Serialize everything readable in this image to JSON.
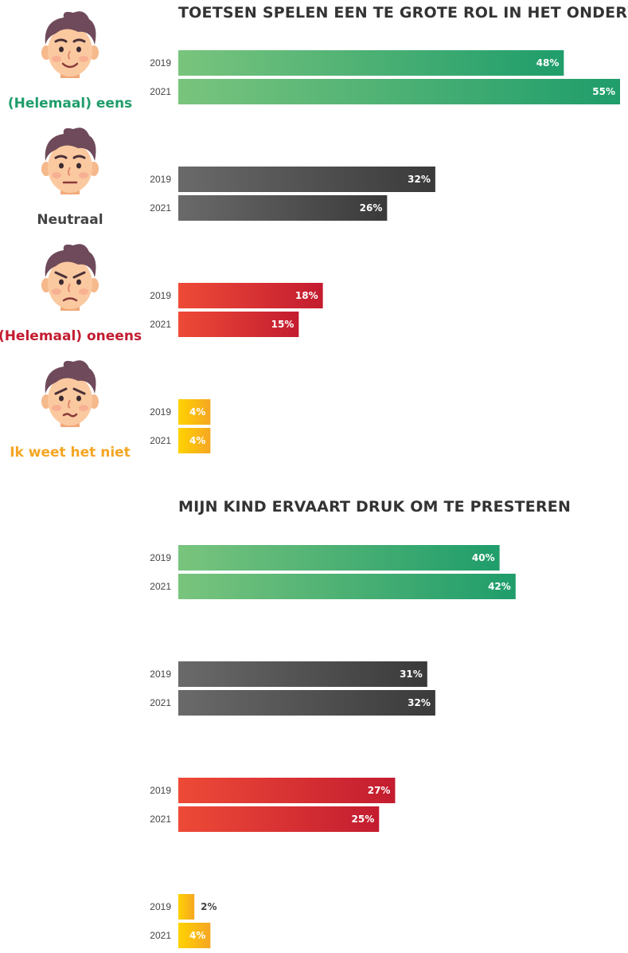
{
  "chart_data": [
    {
      "type": "bar",
      "orientation": "horizontal",
      "title": "TOETSEN SPELEN EEN TE GROTE ROL IN HET ONDERWIJS",
      "category_labels_visible": true,
      "groups": [
        {
          "label": "(Helemaal) eens",
          "color": "#1f9d6b",
          "values": [
            {
              "year": "2019",
              "value": 48,
              "label": "48%"
            },
            {
              "year": "2021",
              "value": 55,
              "label": "55%"
            }
          ]
        },
        {
          "label": "Neutraal",
          "color": "#444444",
          "values": [
            {
              "year": "2019",
              "value": 32,
              "label": "32%"
            },
            {
              "year": "2021",
              "value": 26,
              "label": "26%"
            }
          ]
        },
        {
          "label": "(Helemaal) oneens",
          "color": "#c31c30",
          "values": [
            {
              "year": "2019",
              "value": 18,
              "label": "18%"
            },
            {
              "year": "2021",
              "value": 15,
              "label": "15%"
            }
          ]
        },
        {
          "label": "Ik weet het niet",
          "color": "#f5a623",
          "values": [
            {
              "year": "2019",
              "value": 4,
              "label": "4%"
            },
            {
              "year": "2021",
              "value": 4,
              "label": "4%"
            }
          ]
        }
      ]
    },
    {
      "type": "bar",
      "orientation": "horizontal",
      "title": "MIJN KIND ERVAART DRUK OM TE PRESTEREN",
      "category_labels_visible": false,
      "groups": [
        {
          "label": "(Helemaal) eens",
          "color": "#1f9d6b",
          "values": [
            {
              "year": "2019",
              "value": 40,
              "label": "40%"
            },
            {
              "year": "2021",
              "value": 42,
              "label": "42%"
            }
          ]
        },
        {
          "label": "Neutraal",
          "color": "#444444",
          "values": [
            {
              "year": "2019",
              "value": 31,
              "label": "31%"
            },
            {
              "year": "2021",
              "value": 32,
              "label": "32%"
            }
          ]
        },
        {
          "label": "(Helemaal) oneens",
          "color": "#c31c30",
          "values": [
            {
              "year": "2019",
              "value": 27,
              "label": "27%"
            },
            {
              "year": "2021",
              "value": 25,
              "label": "25%"
            }
          ]
        },
        {
          "label": "Ik weet het niet",
          "color": "#f5a623",
          "values": [
            {
              "year": "2019",
              "value": 2,
              "label": "2%"
            },
            {
              "year": "2021",
              "value": 4,
              "label": "4%"
            }
          ]
        }
      ]
    }
  ]
}
